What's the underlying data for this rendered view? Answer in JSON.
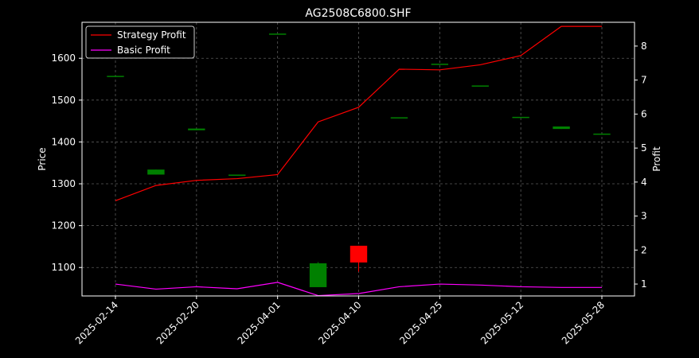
{
  "chart_data": {
    "type": "candlestick-with-lines",
    "title": "AG2508C6800.SHF",
    "xlabel": "",
    "ylabel_left": "Price",
    "ylabel_right": "Profit",
    "ylim_left": [
      1032,
      1686
    ],
    "ylim_right": [
      0.65,
      8.7
    ],
    "yticks_left": [
      1100,
      1200,
      1300,
      1400,
      1500,
      1600
    ],
    "yticks_right": [
      1,
      2,
      3,
      4,
      5,
      6,
      7,
      8
    ],
    "grid": true,
    "legend_position": "top-left",
    "x_tick_labels": [
      "2025-02-14",
      "2025-02-20",
      "2025-04-01",
      "2025-04-10",
      "2025-04-25",
      "2025-05-12",
      "2025-05-28"
    ],
    "x_tick_indices": [
      0,
      2,
      4,
      6,
      8,
      10,
      12
    ],
    "candles": [
      {
        "index": 0,
        "open": 1558,
        "close": 1558,
        "high": 1558,
        "low": 1558
      },
      {
        "index": 1,
        "open": 1322,
        "close": 1334,
        "high": 1334,
        "low": 1322
      },
      {
        "index": 2,
        "open": 1428,
        "close": 1432,
        "high": 1432,
        "low": 1428
      },
      {
        "index": 3,
        "open": 1322,
        "close": 1322,
        "high": 1322,
        "low": 1322
      },
      {
        "index": 4,
        "open": 1659,
        "close": 1659,
        "high": 1659,
        "low": 1659
      },
      {
        "index": 5,
        "open": 1053,
        "close": 1110,
        "high": 1113,
        "low": 1053
      },
      {
        "index": 6,
        "open": 1152,
        "close": 1112,
        "high": 1152,
        "low": 1090
      },
      {
        "index": 7,
        "open": 1459,
        "close": 1459,
        "high": 1459,
        "low": 1459
      },
      {
        "index": 8,
        "open": 1587,
        "close": 1587,
        "high": 1587,
        "low": 1587
      },
      {
        "index": 9,
        "open": 1535,
        "close": 1535,
        "high": 1535,
        "low": 1535
      },
      {
        "index": 10,
        "open": 1460,
        "close": 1460,
        "high": 1460,
        "low": 1460
      },
      {
        "index": 11,
        "open": 1431,
        "close": 1437,
        "high": 1437,
        "low": 1431
      },
      {
        "index": 12,
        "open": 1420,
        "close": 1420,
        "high": 1420,
        "low": 1420
      }
    ],
    "series": [
      {
        "name": "Strategy Profit",
        "color": "#ff0000",
        "values": [
          3.45,
          3.9,
          4.05,
          4.1,
          4.22,
          5.77,
          6.2,
          7.32,
          7.3,
          7.45,
          7.72,
          8.58,
          8.58
        ]
      },
      {
        "name": "Basic Profit",
        "color": "#ff00ff",
        "values": [
          1.0,
          0.85,
          0.92,
          0.86,
          1.05,
          0.66,
          0.72,
          0.92,
          1.0,
          0.97,
          0.92,
          0.9,
          0.9
        ]
      }
    ],
    "candle_up_color": "#008000",
    "candle_down_color": "#ff0000"
  }
}
